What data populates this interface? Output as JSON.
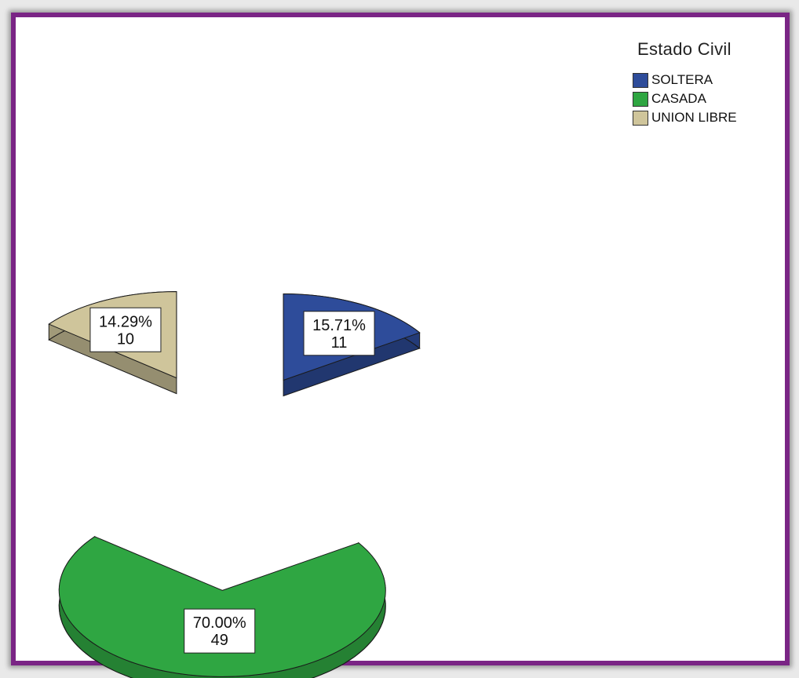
{
  "chart_data": {
    "type": "pie",
    "legend_title": "Estado Civil",
    "legend_position": "top-right",
    "slices": [
      {
        "label": "SOLTERA",
        "percent": "15.71%",
        "count": "11",
        "value": 11,
        "color": "#2e4c9a"
      },
      {
        "label": "CASADA",
        "percent": "70.00%",
        "count": "49",
        "value": 49,
        "color": "#2fa642"
      },
      {
        "label": "UNION LIBRE",
        "percent": "14.29%",
        "count": "10",
        "value": 10,
        "color": "#cfc59b"
      }
    ]
  }
}
